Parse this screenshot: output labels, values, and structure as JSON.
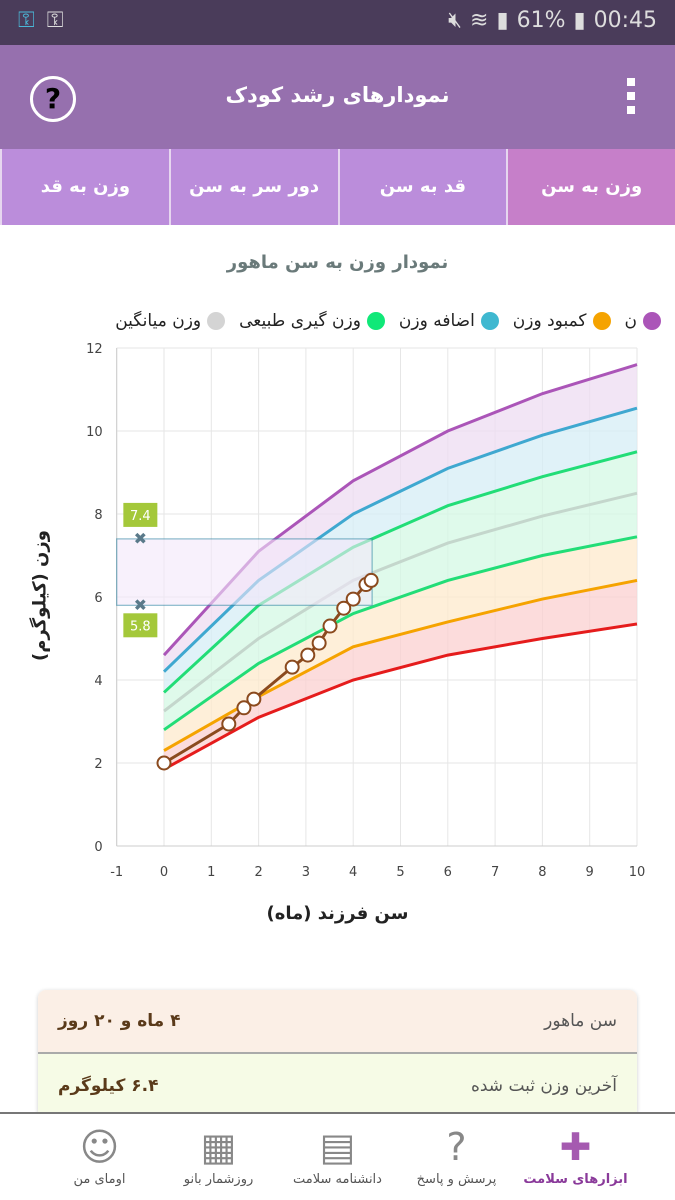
{
  "status": {
    "time": "00:45",
    "battery": "61%",
    "icons": [
      "vpn-key-icon",
      "key-icon",
      "mute-icon",
      "wifi-icon",
      "signal-icon",
      "battery-icon"
    ]
  },
  "header": {
    "title": "نمودارهای رشد کودک",
    "help": "?"
  },
  "tabs": [
    {
      "label": "وزن به سن",
      "active": true
    },
    {
      "label": "قد به سن"
    },
    {
      "label": "دور سر به سن"
    },
    {
      "label": "وزن به قد"
    }
  ],
  "chart_title": "نمودار وزن به سن ماهور",
  "legend": [
    {
      "label": "ن",
      "color": "#ab55b8"
    },
    {
      "label": "کمبود وزن",
      "color": "#f5a300"
    },
    {
      "label": "اضافه وزن",
      "color": "#3fb8d0"
    },
    {
      "label": "وزن گیری طبیعی",
      "color": "#10e878"
    },
    {
      "label": "وزن میانگین",
      "color": "#d4d4d4"
    }
  ],
  "chart_data": {
    "type": "line",
    "xlabel": "سن فرزند (ماه)",
    "ylabel": "وزن (کیلوگرم)",
    "xlim": [
      -1,
      10
    ],
    "ylim": [
      0,
      12
    ],
    "xticks": [
      "-1",
      "0",
      "1",
      "2",
      "3",
      "4",
      "5",
      "6",
      "7",
      "8",
      "9",
      "10"
    ],
    "yticks": [
      "0",
      "2",
      "4",
      "6",
      "8",
      "10",
      "12"
    ],
    "grid": true,
    "curve_x": [
      0,
      2,
      4,
      6,
      8,
      10
    ],
    "curves": [
      {
        "color": "#e51c1c",
        "values": [
          1.85,
          3.1,
          4.0,
          4.6,
          5.0,
          5.35
        ],
        "fill": "#fbd0d0"
      },
      {
        "color": "#f5a300",
        "values": [
          2.3,
          3.6,
          4.8,
          5.4,
          5.95,
          6.4
        ],
        "fill": "#fde9cc"
      },
      {
        "color": "#22dd77",
        "values": [
          2.8,
          4.4,
          5.6,
          6.4,
          7.0,
          7.45
        ],
        "fill": "#d4f8e4"
      },
      {
        "color": "#c4d6cc",
        "values": [
          3.25,
          5.0,
          6.4,
          7.3,
          7.95,
          8.5
        ],
        "fill": "#d4f8e4"
      },
      {
        "color": "#22dd77",
        "values": [
          3.7,
          5.8,
          7.2,
          8.2,
          8.9,
          9.5
        ],
        "fill": "#d6eef5"
      },
      {
        "color": "#3fa8d0",
        "values": [
          4.2,
          6.4,
          8.0,
          9.1,
          9.9,
          10.55
        ],
        "fill": "#eedcf2"
      },
      {
        "color": "#ab55b8",
        "values": [
          4.6,
          7.1,
          8.8,
          10.0,
          10.9,
          11.6
        ]
      }
    ],
    "child": {
      "color": "#8b4a1e",
      "x": [
        0,
        1.37,
        1.69,
        1.9,
        2.71,
        3.04,
        3.28,
        3.51,
        3.8,
        4.0,
        4.27,
        4.38
      ],
      "y": [
        2.0,
        2.94,
        3.33,
        3.54,
        4.31,
        4.6,
        4.89,
        5.3,
        5.73,
        5.95,
        6.3,
        6.4
      ]
    },
    "range_box": {
      "x": [
        -1,
        4.4
      ],
      "y": [
        5.8,
        7.4
      ],
      "labels": [
        "7.4",
        "5.8"
      ],
      "label_color": "#a4c83a"
    }
  },
  "summary": [
    {
      "label": "سن ماهور",
      "value": "۴ ماه و ۲۰ روز"
    },
    {
      "label": "آخرین وزن ثبت شده",
      "value": "۶.۴ کیلوگرم"
    }
  ],
  "nav": [
    {
      "label": "ابزارهای سلامت",
      "icon": "first-aid-kit-icon",
      "active": true
    },
    {
      "label": "پرسش و پاسخ",
      "icon": "question-bubble-icon"
    },
    {
      "label": "دانشنامه سلامت",
      "icon": "newspaper-icon"
    },
    {
      "label": "روزشمار بانو",
      "icon": "calendar-icon"
    },
    {
      "label": "اومای من",
      "icon": "avatar-icon"
    }
  ]
}
